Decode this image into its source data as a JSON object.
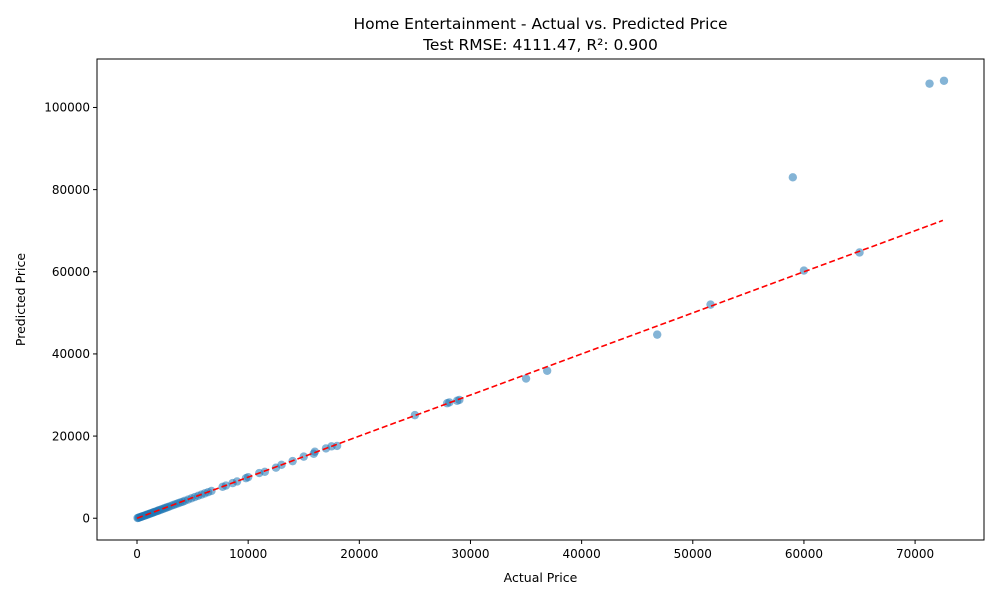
{
  "chart_data": {
    "type": "scatter",
    "title": "Home Entertainment - Actual vs. Predicted Price",
    "subtitle": "Test RMSE: 4111.47, R²: 0.900",
    "xlabel": "Actual Price",
    "ylabel": "Predicted Price",
    "xlim": [
      -3600,
      76200
    ],
    "ylim": [
      -5300,
      111800
    ],
    "x_ticks": [
      0,
      10000,
      20000,
      30000,
      40000,
      50000,
      60000,
      70000
    ],
    "y_ticks": [
      0,
      20000,
      40000,
      60000,
      80000,
      100000
    ],
    "grid": false,
    "point_color": "#1f77b4",
    "line_color": "#ff0000",
    "reference_line": {
      "style": "dashed",
      "from": [
        0,
        0
      ],
      "to": [
        72500,
        72500
      ]
    },
    "points": [
      [
        50,
        50
      ],
      [
        120,
        100
      ],
      [
        200,
        180
      ],
      [
        300,
        280
      ],
      [
        380,
        350
      ],
      [
        450,
        420
      ],
      [
        550,
        520
      ],
      [
        650,
        600
      ],
      [
        750,
        700
      ],
      [
        850,
        820
      ],
      [
        950,
        900
      ],
      [
        1050,
        1000
      ],
      [
        1150,
        1100
      ],
      [
        1250,
        1200
      ],
      [
        1350,
        1300
      ],
      [
        1450,
        1400
      ],
      [
        1550,
        1500
      ],
      [
        1650,
        1600
      ],
      [
        1800,
        1750
      ],
      [
        1900,
        1850
      ],
      [
        2000,
        1950
      ],
      [
        2150,
        2100
      ],
      [
        2300,
        2250
      ],
      [
        2450,
        2400
      ],
      [
        2600,
        2550
      ],
      [
        2750,
        2700
      ],
      [
        2900,
        2850
      ],
      [
        3100,
        3050
      ],
      [
        3300,
        3250
      ],
      [
        3500,
        3450
      ],
      [
        3700,
        3650
      ],
      [
        3900,
        3850
      ],
      [
        4100,
        4000
      ],
      [
        4300,
        4250
      ],
      [
        4600,
        4550
      ],
      [
        4900,
        4850
      ],
      [
        5200,
        5150
      ],
      [
        5500,
        5450
      ],
      [
        5800,
        5750
      ],
      [
        6100,
        6050
      ],
      [
        6400,
        6350
      ],
      [
        6700,
        6650
      ],
      [
        7700,
        7650
      ],
      [
        8000,
        7950
      ],
      [
        8600,
        8550
      ],
      [
        9000,
        8950
      ],
      [
        9800,
        9750
      ],
      [
        10000,
        10000
      ],
      [
        11000,
        11000
      ],
      [
        11500,
        11300
      ],
      [
        12500,
        12300
      ],
      [
        13000,
        13000
      ],
      [
        14000,
        13900
      ],
      [
        15000,
        15000
      ],
      [
        15900,
        15700
      ],
      [
        16000,
        16200
      ],
      [
        17000,
        17000
      ],
      [
        17500,
        17500
      ],
      [
        18000,
        17600
      ],
      [
        25000,
        25100
      ],
      [
        27900,
        28000
      ],
      [
        28100,
        28200
      ],
      [
        28800,
        28600
      ],
      [
        29000,
        28800
      ],
      [
        35000,
        34000
      ],
      [
        36900,
        35900
      ],
      [
        46800,
        44700
      ],
      [
        51600,
        52000
      ],
      [
        59000,
        83000
      ],
      [
        60000,
        60300
      ],
      [
        65000,
        64700
      ],
      [
        71300,
        105800
      ],
      [
        72600,
        106500
      ]
    ]
  }
}
